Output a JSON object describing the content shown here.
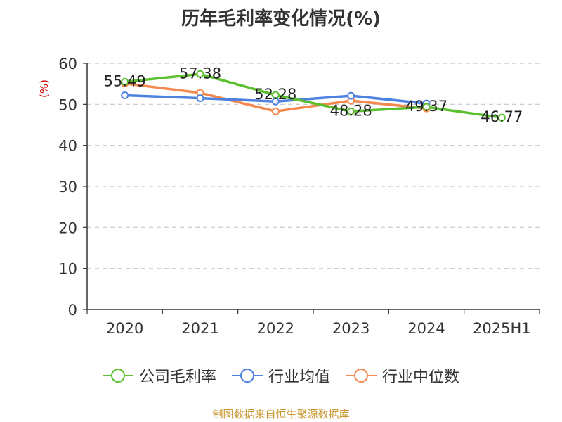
{
  "chart_data": {
    "type": "line",
    "title": "历年毛利率变化情况(%)",
    "ylabel": "(%)",
    "categories": [
      "2020",
      "2021",
      "2022",
      "2023",
      "2024",
      "2025H1"
    ],
    "ylim": [
      0,
      60
    ],
    "yticks": [
      0,
      10,
      20,
      30,
      40,
      50,
      60
    ],
    "grid": true,
    "legend_position": "bottom",
    "series": [
      {
        "name": "公司毛利率",
        "color": "#5cc02e",
        "labeled": true,
        "values": [
          55.49,
          57.38,
          52.28,
          48.28,
          49.37,
          46.77
        ]
      },
      {
        "name": "行业均值",
        "color": "#4f82e0",
        "labeled": false,
        "values": [
          52.2,
          51.5,
          50.7,
          52.1,
          50.2,
          null
        ]
      },
      {
        "name": "行业中位数",
        "color": "#f4894f",
        "labeled": false,
        "values": [
          55.1,
          52.8,
          48.3,
          50.9,
          49.0,
          null
        ]
      }
    ],
    "data_labels": [
      "55.49",
      "57.38",
      "52.28",
      "48.28",
      "49.37",
      "46.77"
    ]
  },
  "source": "制图数据来自恒生聚源数据库"
}
